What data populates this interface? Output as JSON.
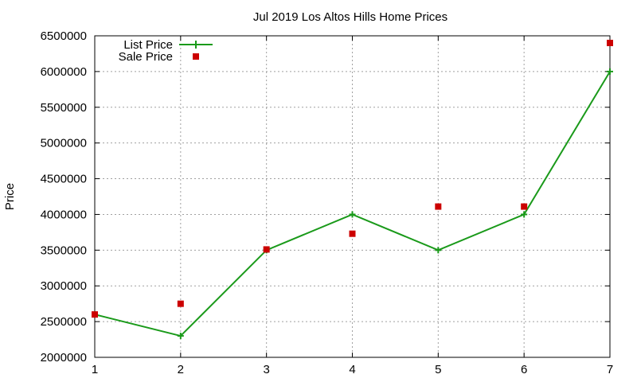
{
  "chart_data": {
    "type": "line",
    "title": "Jul 2019 Los Altos Hills Home Prices",
    "xlabel": "",
    "ylabel": "Price",
    "x": [
      1,
      2,
      3,
      4,
      5,
      6,
      7
    ],
    "xlim": [
      1,
      7
    ],
    "ylim": [
      2000000,
      6500000
    ],
    "xticks": [
      "1",
      "2",
      "3",
      "4",
      "5",
      "6",
      "7"
    ],
    "yticks": [
      "2000000",
      "2500000",
      "3000000",
      "3500000",
      "4000000",
      "4500000",
      "5000000",
      "5500000",
      "6000000",
      "6500000"
    ],
    "grid": true,
    "legend_position": "top-left",
    "series": [
      {
        "name": "List Price",
        "kind": "line-with-plus-markers",
        "color": "#1a9a1a",
        "values": [
          2600000,
          2300000,
          3500000,
          4000000,
          3500000,
          4000000,
          6000000
        ]
      },
      {
        "name": "Sale Price",
        "kind": "square-points",
        "color": "#cc0000",
        "values": [
          2600000,
          2750000,
          3510000,
          3730000,
          4110000,
          4110000,
          6400000
        ]
      }
    ]
  }
}
